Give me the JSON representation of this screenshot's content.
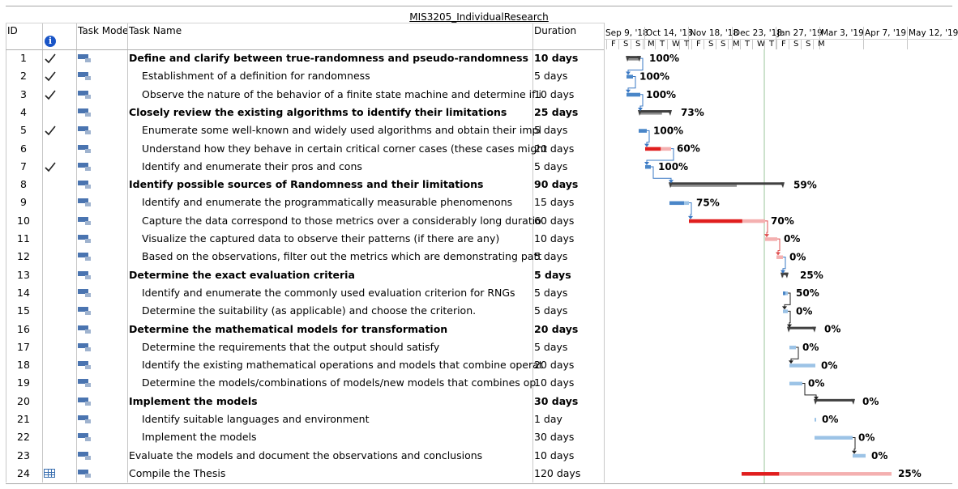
{
  "project_title": "MIS3205_IndividualResearch",
  "columns": {
    "id": "ID",
    "task_mode": "Task Mode",
    "task_name": "Task Name",
    "duration": "Duration"
  },
  "timescale": {
    "months": [
      "Sep 9, '18",
      "Oct 14, '18",
      "Nov 18, '18",
      "Dec 23, '18",
      "Jan 27, '19",
      "Mar 3, '19",
      "Apr 7, '19",
      "May 12, '19"
    ],
    "days": [
      "F",
      "S",
      "S",
      "M",
      "T",
      "W",
      "T",
      "F",
      "S",
      "S",
      "M",
      "T",
      "W",
      "T",
      "F",
      "S",
      "S",
      "M"
    ]
  },
  "tasks": [
    {
      "id": "1",
      "done": true,
      "summary": true,
      "name": "Define and clarify between true-randomness and pseudo-randomness",
      "duration": "10 days",
      "percent": "100%"
    },
    {
      "id": "2",
      "done": true,
      "summary": false,
      "name": "Establishment of a definition for randomness",
      "duration": "5 days",
      "percent": "100%"
    },
    {
      "id": "3",
      "done": true,
      "summary": false,
      "name": "Observe the nature of the behavior of a finite state machine and determine if i",
      "duration": "10 days",
      "percent": "100%"
    },
    {
      "id": "4",
      "done": false,
      "summary": true,
      "name": "Closely review the existing algorithms to identify their limitations",
      "duration": "25 days",
      "percent": "73%"
    },
    {
      "id": "5",
      "done": true,
      "summary": false,
      "name": "Enumerate some well-known and widely used algorithms and obtain their impl",
      "duration": "5 days",
      "percent": "100%"
    },
    {
      "id": "6",
      "done": false,
      "summary": false,
      "name": "Understand how they behave in certain critical corner cases (these cases might",
      "duration": "20 days",
      "percent": "60%"
    },
    {
      "id": "7",
      "done": true,
      "summary": false,
      "name": "Identify and enumerate their pros and cons",
      "duration": "5 days",
      "percent": "100%"
    },
    {
      "id": "8",
      "done": false,
      "summary": true,
      "name": "Identify possible sources of Randomness and their limitations",
      "duration": "90 days",
      "percent": "59%"
    },
    {
      "id": "9",
      "done": false,
      "summary": false,
      "name": "Identify and enumerate the programmatically measurable phenomenons",
      "duration": "15 days",
      "percent": "75%"
    },
    {
      "id": "10",
      "done": false,
      "summary": false,
      "name": "Capture the data correspond to those metrics over a considerably long duratio",
      "duration": "60 days",
      "percent": "70%"
    },
    {
      "id": "11",
      "done": false,
      "summary": false,
      "name": "Visualize the captured data to observe their patterns (if there are any)",
      "duration": "10 days",
      "percent": "0%"
    },
    {
      "id": "12",
      "done": false,
      "summary": false,
      "name": "Based on the observations, filter out the metrics which are demonstrating patt",
      "duration": "5 days",
      "percent": "0%"
    },
    {
      "id": "13",
      "done": false,
      "summary": true,
      "name": "Determine the exact evaluation criteria",
      "duration": "5 days",
      "percent": "25%"
    },
    {
      "id": "14",
      "done": false,
      "summary": false,
      "name": "Identify and enumerate the commonly used evaluation criterion for RNGs",
      "duration": "5 days",
      "percent": "50%"
    },
    {
      "id": "15",
      "done": false,
      "summary": false,
      "name": "Determine the suitability (as applicable) and choose the criterion.",
      "duration": "5 days",
      "percent": "0%"
    },
    {
      "id": "16",
      "done": false,
      "summary": true,
      "name": "Determine the mathematical models for transformation",
      "duration": "20 days",
      "percent": "0%"
    },
    {
      "id": "17",
      "done": false,
      "summary": false,
      "name": "Determine the requirements that the output should satisfy",
      "duration": "5 days",
      "percent": "0%"
    },
    {
      "id": "18",
      "done": false,
      "summary": false,
      "name": "Identify the existing mathematical operations and models that combine operat",
      "duration": "20 days",
      "percent": "0%"
    },
    {
      "id": "19",
      "done": false,
      "summary": false,
      "name": "Determine the models/combinations of models/new models that combines op",
      "duration": "10 days",
      "percent": "0%"
    },
    {
      "id": "20",
      "done": false,
      "summary": true,
      "name": "Implement the models",
      "duration": "30 days",
      "percent": "0%"
    },
    {
      "id": "21",
      "done": false,
      "summary": false,
      "name": "Identify suitable languages and environment",
      "duration": "1 day",
      "percent": "0%"
    },
    {
      "id": "22",
      "done": false,
      "summary": false,
      "name": "Implement the models",
      "duration": "30 days",
      "percent": "0%"
    },
    {
      "id": "23",
      "done": false,
      "summary": false,
      "top": true,
      "name": "Evaluate the models and document the observations and conclusions",
      "duration": "10 days",
      "percent": "0%"
    },
    {
      "id": "24",
      "done": false,
      "summary": false,
      "top": true,
      "recurring": true,
      "name": "Compile the Thesis",
      "duration": "120 days",
      "percent": "25%"
    }
  ],
  "colors": {
    "progress_blue": "#4a86c8",
    "remaining_blue": "#9cc3e6",
    "critical": "#e01e1e",
    "critical_light": "#f4b0b0",
    "summary": "#404040",
    "today_line": "#9bc49b"
  }
}
